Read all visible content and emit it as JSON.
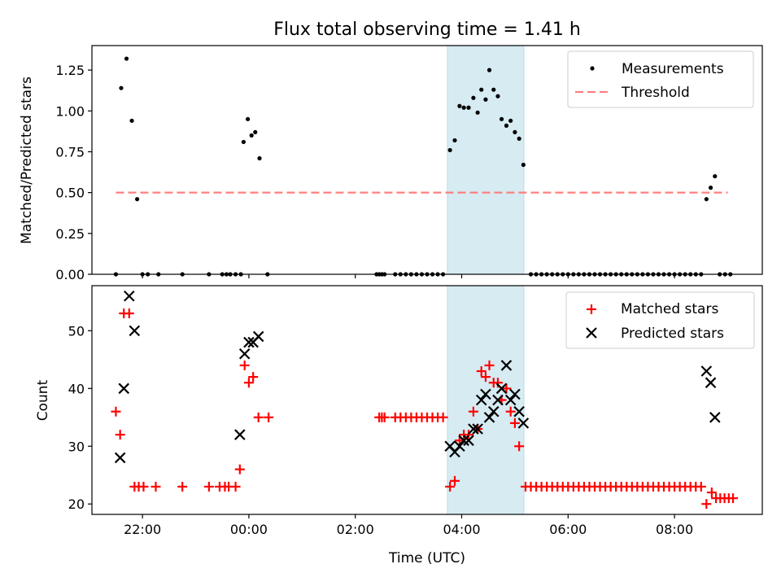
{
  "chart_data": {
    "type": "scatter",
    "title": "Flux total observing time = 1.41 h",
    "xlabel": "Time (UTC)",
    "x_unit": "hours relative to 00:00 UTC",
    "xlim": [
      -2.95,
      9.65
    ],
    "x_ticks": [
      {
        "value": -2,
        "label": "22:00"
      },
      {
        "value": 0,
        "label": "00:00"
      },
      {
        "value": 2,
        "label": "02:00"
      },
      {
        "value": 4,
        "label": "04:00"
      },
      {
        "value": 6,
        "label": "06:00"
      },
      {
        "value": 8,
        "label": "08:00"
      }
    ],
    "highlight_span": {
      "x_start": 3.73,
      "x_end": 5.17,
      "color": "#add8e6"
    },
    "top_panel": {
      "ylabel": "Matched/Predicted stars",
      "ylim": [
        0,
        1.4
      ],
      "y_ticks": [
        "0.00",
        "0.25",
        "0.50",
        "0.75",
        "1.00",
        "1.25"
      ],
      "legend_position": "top-right",
      "threshold": {
        "name": "Threshold",
        "y": 0.5,
        "x_range": [
          -2.5,
          9
        ],
        "color": "#ff8080"
      },
      "series": [
        {
          "name": "Measurements",
          "color": "#000000",
          "points": [
            [
              -2.5,
              0
            ],
            [
              -2.4,
              1.14
            ],
            [
              -2.3,
              1.32
            ],
            [
              -2.2,
              0.94
            ],
            [
              -2.1,
              0.46
            ],
            [
              -2.0,
              0
            ],
            [
              -1.9,
              0
            ],
            [
              -1.7,
              0
            ],
            [
              -1.25,
              0
            ],
            [
              -0.75,
              0
            ],
            [
              -0.5,
              0
            ],
            [
              -0.42,
              0
            ],
            [
              -0.35,
              0
            ],
            [
              -0.25,
              0
            ],
            [
              -0.15,
              0
            ],
            [
              -0.1,
              0.81
            ],
            [
              -0.02,
              0.95
            ],
            [
              0.05,
              0.85
            ],
            [
              0.12,
              0.87
            ],
            [
              0.2,
              0.71
            ],
            [
              0.35,
              0
            ],
            [
              2.4,
              0
            ],
            [
              2.45,
              0
            ],
            [
              2.5,
              0
            ],
            [
              2.55,
              0
            ],
            [
              2.75,
              0
            ],
            [
              2.85,
              0
            ],
            [
              2.95,
              0
            ],
            [
              3.05,
              0
            ],
            [
              3.15,
              0
            ],
            [
              3.25,
              0
            ],
            [
              3.35,
              0
            ],
            [
              3.45,
              0
            ],
            [
              3.55,
              0
            ],
            [
              3.65,
              0
            ],
            [
              3.78,
              0.76
            ],
            [
              3.87,
              0.82
            ],
            [
              3.96,
              1.03
            ],
            [
              4.04,
              1.02
            ],
            [
              4.13,
              1.02
            ],
            [
              4.22,
              1.08
            ],
            [
              4.3,
              0.99
            ],
            [
              4.37,
              1.13
            ],
            [
              4.45,
              1.07
            ],
            [
              4.52,
              1.25
            ],
            [
              4.6,
              1.13
            ],
            [
              4.68,
              1.09
            ],
            [
              4.75,
              0.95
            ],
            [
              4.84,
              0.91
            ],
            [
              4.92,
              0.94
            ],
            [
              5.0,
              0.87
            ],
            [
              5.08,
              0.83
            ],
            [
              5.16,
              0.67
            ],
            [
              5.3,
              0
            ],
            [
              5.4,
              0
            ],
            [
              5.5,
              0
            ],
            [
              5.6,
              0
            ],
            [
              5.7,
              0
            ],
            [
              5.8,
              0
            ],
            [
              5.9,
              0
            ],
            [
              6.0,
              0
            ],
            [
              6.1,
              0
            ],
            [
              6.2,
              0
            ],
            [
              6.3,
              0
            ],
            [
              6.4,
              0
            ],
            [
              6.5,
              0
            ],
            [
              6.6,
              0
            ],
            [
              6.7,
              0
            ],
            [
              6.8,
              0
            ],
            [
              6.9,
              0
            ],
            [
              7.0,
              0
            ],
            [
              7.1,
              0
            ],
            [
              7.2,
              0
            ],
            [
              7.3,
              0
            ],
            [
              7.4,
              0
            ],
            [
              7.5,
              0
            ],
            [
              7.6,
              0
            ],
            [
              7.7,
              0
            ],
            [
              7.8,
              0
            ],
            [
              7.9,
              0
            ],
            [
              8.0,
              0
            ],
            [
              8.1,
              0
            ],
            [
              8.2,
              0
            ],
            [
              8.3,
              0
            ],
            [
              8.4,
              0
            ],
            [
              8.5,
              0
            ],
            [
              8.6,
              0.46
            ],
            [
              8.68,
              0.53
            ],
            [
              8.76,
              0.6
            ],
            [
              8.85,
              0
            ],
            [
              8.95,
              0
            ],
            [
              9.05,
              0
            ]
          ]
        }
      ]
    },
    "bottom_panel": {
      "ylabel": "Count",
      "ylim": [
        18.2,
        57.8
      ],
      "y_ticks": [
        "20",
        "30",
        "40",
        "50"
      ],
      "legend_position": "top-right",
      "series": [
        {
          "name": "Matched stars",
          "marker": "+",
          "color": "#ff0000",
          "points": [
            [
              -2.5,
              36
            ],
            [
              -2.42,
              32
            ],
            [
              -2.35,
              53
            ],
            [
              -2.25,
              53
            ],
            [
              -2.15,
              23
            ],
            [
              -2.07,
              23
            ],
            [
              -1.98,
              23
            ],
            [
              -1.75,
              23
            ],
            [
              -1.25,
              23
            ],
            [
              -0.75,
              23
            ],
            [
              -0.55,
              23
            ],
            [
              -0.45,
              23
            ],
            [
              -0.38,
              23
            ],
            [
              -0.25,
              23
            ],
            [
              -0.17,
              26
            ],
            [
              -0.08,
              44
            ],
            [
              0.0,
              41
            ],
            [
              0.08,
              42
            ],
            [
              0.18,
              35
            ],
            [
              0.37,
              35
            ],
            [
              2.45,
              35
            ],
            [
              2.5,
              35
            ],
            [
              2.55,
              35
            ],
            [
              2.75,
              35
            ],
            [
              2.85,
              35
            ],
            [
              2.95,
              35
            ],
            [
              3.05,
              35
            ],
            [
              3.15,
              35
            ],
            [
              3.25,
              35
            ],
            [
              3.35,
              35
            ],
            [
              3.45,
              35
            ],
            [
              3.55,
              35
            ],
            [
              3.65,
              35
            ],
            [
              3.78,
              23
            ],
            [
              3.87,
              24
            ],
            [
              3.96,
              31
            ],
            [
              4.04,
              32
            ],
            [
              4.13,
              32
            ],
            [
              4.22,
              36
            ],
            [
              4.3,
              33
            ],
            [
              4.37,
              43
            ],
            [
              4.45,
              42
            ],
            [
              4.52,
              44
            ],
            [
              4.6,
              41
            ],
            [
              4.68,
              41
            ],
            [
              4.75,
              38
            ],
            [
              4.84,
              40
            ],
            [
              4.92,
              36
            ],
            [
              5.0,
              34
            ],
            [
              5.08,
              30
            ],
            [
              5.2,
              23
            ],
            [
              5.3,
              23
            ],
            [
              5.4,
              23
            ],
            [
              5.5,
              23
            ],
            [
              5.6,
              23
            ],
            [
              5.7,
              23
            ],
            [
              5.8,
              23
            ],
            [
              5.9,
              23
            ],
            [
              6.0,
              23
            ],
            [
              6.1,
              23
            ],
            [
              6.2,
              23
            ],
            [
              6.3,
              23
            ],
            [
              6.4,
              23
            ],
            [
              6.5,
              23
            ],
            [
              6.6,
              23
            ],
            [
              6.7,
              23
            ],
            [
              6.8,
              23
            ],
            [
              6.9,
              23
            ],
            [
              7.0,
              23
            ],
            [
              7.1,
              23
            ],
            [
              7.2,
              23
            ],
            [
              7.3,
              23
            ],
            [
              7.4,
              23
            ],
            [
              7.5,
              23
            ],
            [
              7.6,
              23
            ],
            [
              7.7,
              23
            ],
            [
              7.8,
              23
            ],
            [
              7.9,
              23
            ],
            [
              8.0,
              23
            ],
            [
              8.1,
              23
            ],
            [
              8.2,
              23
            ],
            [
              8.3,
              23
            ],
            [
              8.4,
              23
            ],
            [
              8.5,
              23
            ],
            [
              8.6,
              20
            ],
            [
              8.7,
              22
            ],
            [
              8.78,
              21
            ],
            [
              8.86,
              21
            ],
            [
              8.94,
              21
            ],
            [
              9.02,
              21
            ],
            [
              9.1,
              21
            ]
          ]
        },
        {
          "name": "Predicted stars",
          "marker": "x",
          "color": "#000000",
          "points": [
            [
              -2.42,
              28
            ],
            [
              -2.35,
              40
            ],
            [
              -2.25,
              56
            ],
            [
              -2.15,
              50
            ],
            [
              -0.17,
              32
            ],
            [
              -0.08,
              46
            ],
            [
              0.0,
              48
            ],
            [
              0.08,
              48
            ],
            [
              0.18,
              49
            ],
            [
              3.78,
              30
            ],
            [
              3.87,
              29
            ],
            [
              3.96,
              30
            ],
            [
              4.04,
              31
            ],
            [
              4.13,
              31
            ],
            [
              4.22,
              33
            ],
            [
              4.3,
              33
            ],
            [
              4.37,
              38
            ],
            [
              4.45,
              39
            ],
            [
              4.52,
              35
            ],
            [
              4.6,
              36
            ],
            [
              4.68,
              38
            ],
            [
              4.75,
              40
            ],
            [
              4.84,
              44
            ],
            [
              4.92,
              38
            ],
            [
              5.0,
              39
            ],
            [
              5.08,
              36
            ],
            [
              5.16,
              34
            ],
            [
              8.6,
              43
            ],
            [
              8.68,
              41
            ],
            [
              8.76,
              35
            ]
          ]
        }
      ]
    }
  }
}
